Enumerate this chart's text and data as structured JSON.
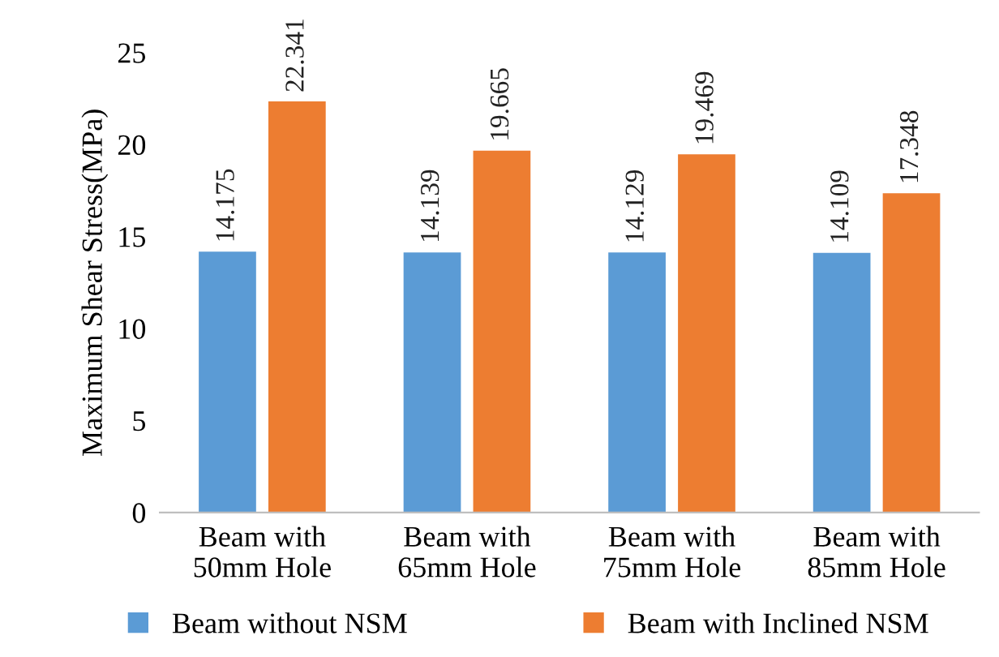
{
  "chart_data": {
    "type": "bar",
    "ylabel": "Maximum Shear Stress(MPa)",
    "categories": [
      "Beam with\n50mm Hole",
      "Beam with\n65mm Hole",
      "Beam with\n75mm Hole",
      "Beam with\n85mm Hole"
    ],
    "series": [
      {
        "name": "Beam without NSM",
        "color": "#5b9bd5",
        "values": [
          14.175,
          14.139,
          14.129,
          14.109
        ]
      },
      {
        "name": "Beam with Inclined NSM",
        "color": "#ed7d31",
        "values": [
          22.341,
          19.665,
          19.469,
          17.348
        ]
      }
    ],
    "ylim": [
      0,
      25
    ],
    "yticks": [
      0,
      5,
      10,
      15,
      20,
      25
    ],
    "grid": false,
    "legend": "bottom",
    "data_labels": true
  }
}
